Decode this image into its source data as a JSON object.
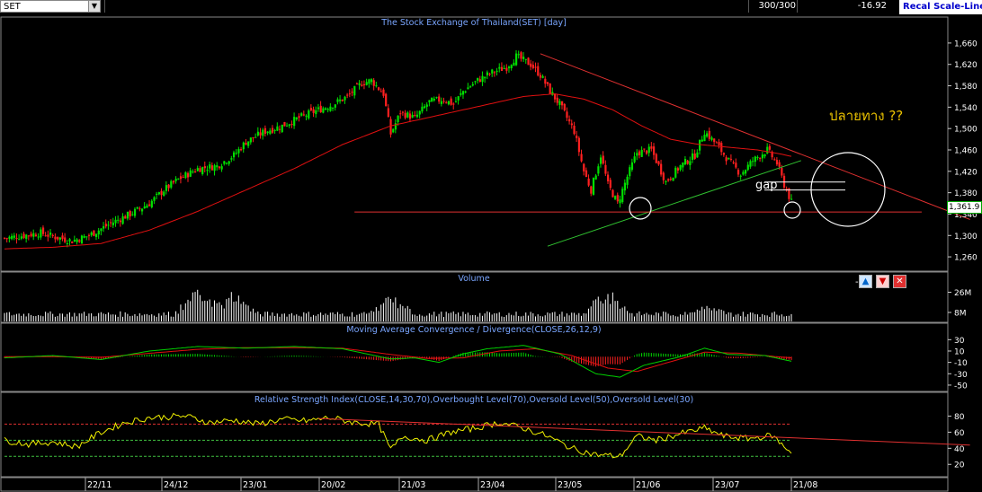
{
  "toolbar": {
    "symbol": "SET",
    "bars_count": "300/300",
    "change": "-16.92",
    "recal_label": "Recal Scale-Line"
  },
  "panels": {
    "price": {
      "title": "The Stock Exchange of Thailand(SET) [day]"
    },
    "volume": {
      "title": "Volume",
      "minus": "-"
    },
    "macd": {
      "title": "Moving Average Convergence / Divergence(CLOSE,26,12,9)"
    },
    "rsi": {
      "title": "Relative Strength Index(CLOSE,14,30,70),Overbought Level(70),Oversold Level(50),Oversold Level(30)"
    }
  },
  "annotations": {
    "question": "ปลายทาง ??",
    "gap": "gap"
  },
  "last_price_label": "1,361.9",
  "colors": {
    "up": "#00e000",
    "down": "#ff2020",
    "ma": "#e01010",
    "signal": "#e01010",
    "macd": "#00d000",
    "rsi": "#f0f000",
    "trend_support": "#30c030",
    "trend_resist": "#e03030"
  },
  "chart_data": [
    {
      "type": "candlestick",
      "name": "price",
      "ylim": [
        1240,
        1680
      ],
      "yticks": [
        "1,660",
        "1,620",
        "1,580",
        "1,540",
        "1,500",
        "1,460",
        "1,420",
        "1,380",
        "1,340",
        "1,300",
        "1,260"
      ],
      "ytick_values": [
        1660,
        1620,
        1580,
        1540,
        1500,
        1460,
        1420,
        1380,
        1340,
        1300,
        1260
      ],
      "xticks": [
        "22/11",
        "24/12",
        "23/01",
        "20/02",
        "21/03",
        "23/04",
        "23/05",
        "21/06",
        "23/07",
        "21/08"
      ],
      "close_path": [
        [
          0,
          1295
        ],
        [
          8,
          1300
        ],
        [
          15,
          1305
        ],
        [
          20,
          1298
        ],
        [
          28,
          1290
        ],
        [
          35,
          1300
        ],
        [
          45,
          1325
        ],
        [
          52,
          1340
        ],
        [
          60,
          1360
        ],
        [
          66,
          1385
        ],
        [
          72,
          1405
        ],
        [
          80,
          1425
        ],
        [
          88,
          1430
        ],
        [
          95,
          1450
        ],
        [
          100,
          1475
        ],
        [
          108,
          1495
        ],
        [
          115,
          1505
        ],
        [
          122,
          1520
        ],
        [
          130,
          1535
        ],
        [
          136,
          1545
        ],
        [
          142,
          1560
        ],
        [
          148,
          1585
        ],
        [
          152,
          1590
        ],
        [
          157,
          1565
        ],
        [
          160,
          1490
        ],
        [
          164,
          1530
        ],
        [
          170,
          1520
        ],
        [
          176,
          1550
        ],
        [
          182,
          1555
        ],
        [
          186,
          1545
        ],
        [
          190,
          1570
        ],
        [
          196,
          1590
        ],
        [
          202,
          1605
        ],
        [
          208,
          1615
        ],
        [
          212,
          1635
        ],
        [
          218,
          1620
        ],
        [
          222,
          1600
        ],
        [
          226,
          1570
        ],
        [
          230,
          1545
        ],
        [
          236,
          1495
        ],
        [
          240,
          1420
        ],
        [
          243,
          1385
        ],
        [
          247,
          1450
        ],
        [
          250,
          1395
        ],
        [
          254,
          1360
        ],
        [
          258,
          1410
        ],
        [
          262,
          1455
        ],
        [
          268,
          1460
        ],
        [
          274,
          1400
        ],
        [
          280,
          1430
        ],
        [
          286,
          1450
        ],
        [
          290,
          1495
        ],
        [
          295,
          1470
        ],
        [
          300,
          1440
        ],
        [
          305,
          1415
        ],
        [
          310,
          1440
        ],
        [
          316,
          1460
        ],
        [
          320,
          1435
        ],
        [
          323,
          1395
        ],
        [
          326,
          1362
        ]
      ],
      "ma_path": [
        [
          0,
          1275
        ],
        [
          20,
          1278
        ],
        [
          40,
          1285
        ],
        [
          60,
          1310
        ],
        [
          80,
          1345
        ],
        [
          100,
          1385
        ],
        [
          120,
          1425
        ],
        [
          140,
          1470
        ],
        [
          160,
          1505
        ],
        [
          180,
          1525
        ],
        [
          200,
          1545
        ],
        [
          215,
          1560
        ],
        [
          228,
          1565
        ],
        [
          240,
          1555
        ],
        [
          252,
          1535
        ],
        [
          264,
          1505
        ],
        [
          276,
          1480
        ],
        [
          288,
          1470
        ],
        [
          300,
          1465
        ],
        [
          312,
          1460
        ],
        [
          322,
          1452
        ],
        [
          326,
          1448
        ]
      ],
      "up_bars": [
        3,
        47,
        75,
        99,
        140,
        154,
        180,
        200,
        214,
        258
      ],
      "down_bars": [
        34,
        82,
        121,
        152,
        197,
        233,
        276,
        306,
        319,
        326
      ],
      "support_line": [
        [
          225,
          1280
        ],
        [
          330,
          1440
        ]
      ],
      "resist_line": [
        [
          222,
          1640
        ],
        [
          400,
          1330
        ]
      ],
      "horizontal_line": [
        [
          145,
          1344
        ],
        [
          380,
          1344
        ]
      ],
      "gap_lines": [
        1400,
        1385
      ]
    },
    {
      "type": "bar",
      "name": "volume",
      "yticks": [
        "26M",
        "8M"
      ],
      "ytick_values": [
        26,
        8
      ],
      "ylim": [
        0,
        32
      ],
      "peak_index": [
        80,
        95,
        160,
        250,
        290
      ],
      "peak_value": [
        28,
        27,
        22,
        30,
        14
      ]
    },
    {
      "type": "line",
      "name": "macd",
      "yticks": [
        "30",
        "10",
        "-10",
        "-30",
        "-50"
      ],
      "ytick_values": [
        30,
        10,
        -10,
        -30,
        -50
      ],
      "ylim": [
        -58,
        40
      ],
      "macd_path": [
        [
          0,
          -2
        ],
        [
          20,
          2
        ],
        [
          40,
          -5
        ],
        [
          60,
          10
        ],
        [
          80,
          18
        ],
        [
          100,
          15
        ],
        [
          120,
          18
        ],
        [
          140,
          14
        ],
        [
          160,
          -4
        ],
        [
          170,
          -2
        ],
        [
          180,
          -10
        ],
        [
          190,
          5
        ],
        [
          200,
          14
        ],
        [
          215,
          20
        ],
        [
          230,
          5
        ],
        [
          245,
          -30
        ],
        [
          255,
          -36
        ],
        [
          265,
          -15
        ],
        [
          280,
          0
        ],
        [
          290,
          15
        ],
        [
          300,
          4
        ],
        [
          315,
          2
        ],
        [
          326,
          -8
        ]
      ],
      "signal_path": [
        [
          0,
          0
        ],
        [
          20,
          0
        ],
        [
          40,
          -1
        ],
        [
          60,
          6
        ],
        [
          80,
          13
        ],
        [
          100,
          16
        ],
        [
          120,
          16
        ],
        [
          140,
          15
        ],
        [
          160,
          4
        ],
        [
          175,
          -3
        ],
        [
          190,
          -2
        ],
        [
          205,
          10
        ],
        [
          220,
          14
        ],
        [
          235,
          2
        ],
        [
          250,
          -20
        ],
        [
          262,
          -26
        ],
        [
          275,
          -10
        ],
        [
          290,
          8
        ],
        [
          305,
          6
        ],
        [
          320,
          0
        ],
        [
          326,
          -2
        ]
      ]
    },
    {
      "type": "line",
      "name": "rsi",
      "yticks": [
        "80",
        "60",
        "40",
        "20"
      ],
      "ytick_values": [
        80,
        60,
        40,
        20
      ],
      "ylim": [
        8,
        95
      ],
      "levels": [
        70,
        50,
        30
      ],
      "rsi_path": [
        [
          0,
          50
        ],
        [
          10,
          45
        ],
        [
          20,
          48
        ],
        [
          30,
          42
        ],
        [
          40,
          60
        ],
        [
          50,
          72
        ],
        [
          60,
          78
        ],
        [
          75,
          80
        ],
        [
          85,
          72
        ],
        [
          95,
          75
        ],
        [
          105,
          70
        ],
        [
          115,
          76
        ],
        [
          125,
          74
        ],
        [
          135,
          78
        ],
        [
          145,
          72
        ],
        [
          155,
          70
        ],
        [
          160,
          38
        ],
        [
          165,
          55
        ],
        [
          175,
          50
        ],
        [
          185,
          60
        ],
        [
          195,
          65
        ],
        [
          205,
          72
        ],
        [
          215,
          65
        ],
        [
          225,
          55
        ],
        [
          235,
          40
        ],
        [
          245,
          32
        ],
        [
          255,
          30
        ],
        [
          262,
          55
        ],
        [
          270,
          50
        ],
        [
          280,
          58
        ],
        [
          290,
          65
        ],
        [
          298,
          55
        ],
        [
          308,
          52
        ],
        [
          318,
          56
        ],
        [
          323,
          42
        ],
        [
          326,
          36
        ]
      ],
      "trend": [
        [
          130,
          77
        ],
        [
          400,
          44
        ]
      ]
    }
  ]
}
